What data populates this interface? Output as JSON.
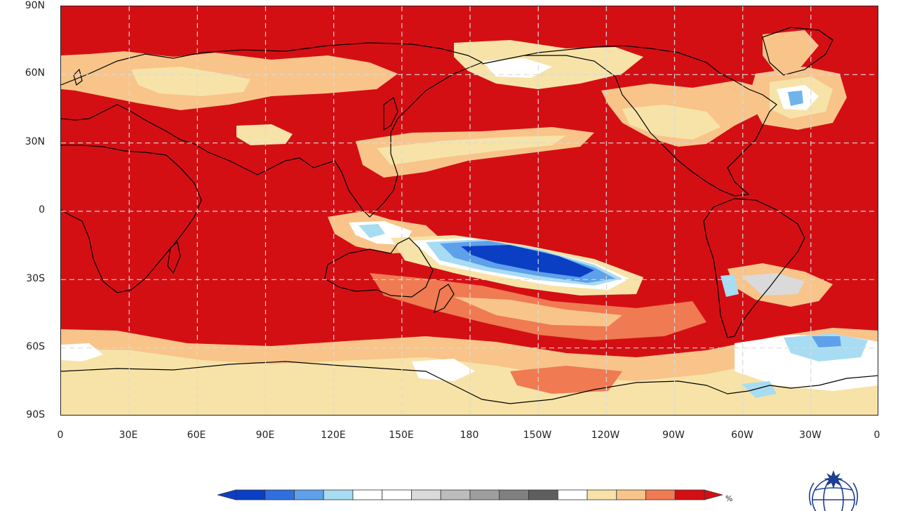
{
  "map": {
    "lat_labels": [
      "90N",
      "60N",
      "30N",
      "0",
      "30S",
      "60S",
      "90S"
    ],
    "lon_labels": [
      "0",
      "30E",
      "60E",
      "90E",
      "120E",
      "150E",
      "180",
      "150W",
      "120W",
      "90W",
      "60W",
      "30W",
      "0"
    ],
    "background_color": "#d40f14",
    "gridlines": "dashed"
  },
  "colorbar": {
    "colors": [
      "#0a3fc4",
      "#2f6fe0",
      "#5ea0ea",
      "#a8dcf2",
      "#ffffff",
      "#ffffff",
      "#dadada",
      "#bcbcbc",
      "#9e9e9e",
      "#808080",
      "#5e5e5e",
      "#ffffff",
      "#f7e3a8",
      "#f8c48a",
      "#f07a52",
      "#d40f14"
    ],
    "unit": "%"
  },
  "logo": {
    "icon": "wmo-emblem-icon"
  }
}
